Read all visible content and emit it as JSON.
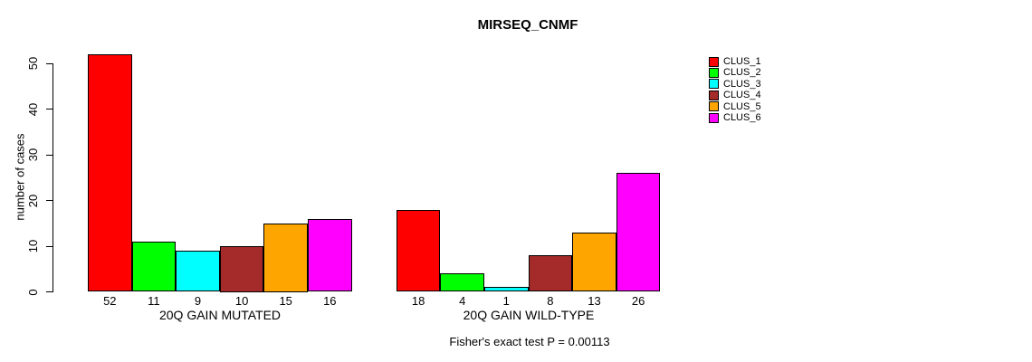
{
  "chart_data": {
    "type": "bar",
    "title": "MIRSEQ_CNMF",
    "ylabel": "number of cases",
    "xlabel": "",
    "ylim": [
      0,
      50
    ],
    "yticks": [
      0,
      10,
      20,
      30,
      40,
      50
    ],
    "grid": false,
    "legend_position": "right",
    "series_note": "each group contains one bar per cluster, in legend order",
    "groups": [
      {
        "label": "20Q GAIN MUTATED",
        "values": [
          52,
          11,
          9,
          10,
          15,
          16
        ]
      },
      {
        "label": "20Q GAIN WILD-TYPE",
        "values": [
          18,
          4,
          1,
          8,
          13,
          26
        ]
      }
    ],
    "footnote": "Fisher's exact test P = 0.00113"
  },
  "legend": {
    "items": [
      {
        "label": "CLUS_1",
        "color": "#FF0000"
      },
      {
        "label": "CLUS_2",
        "color": "#00FF00"
      },
      {
        "label": "CLUS_3",
        "color": "#00FFFF"
      },
      {
        "label": "CLUS_4",
        "color": "#A52A2A"
      },
      {
        "label": "CLUS_5",
        "color": "#FFA500"
      },
      {
        "label": "CLUS_6",
        "color": "#FF00FF"
      }
    ]
  }
}
